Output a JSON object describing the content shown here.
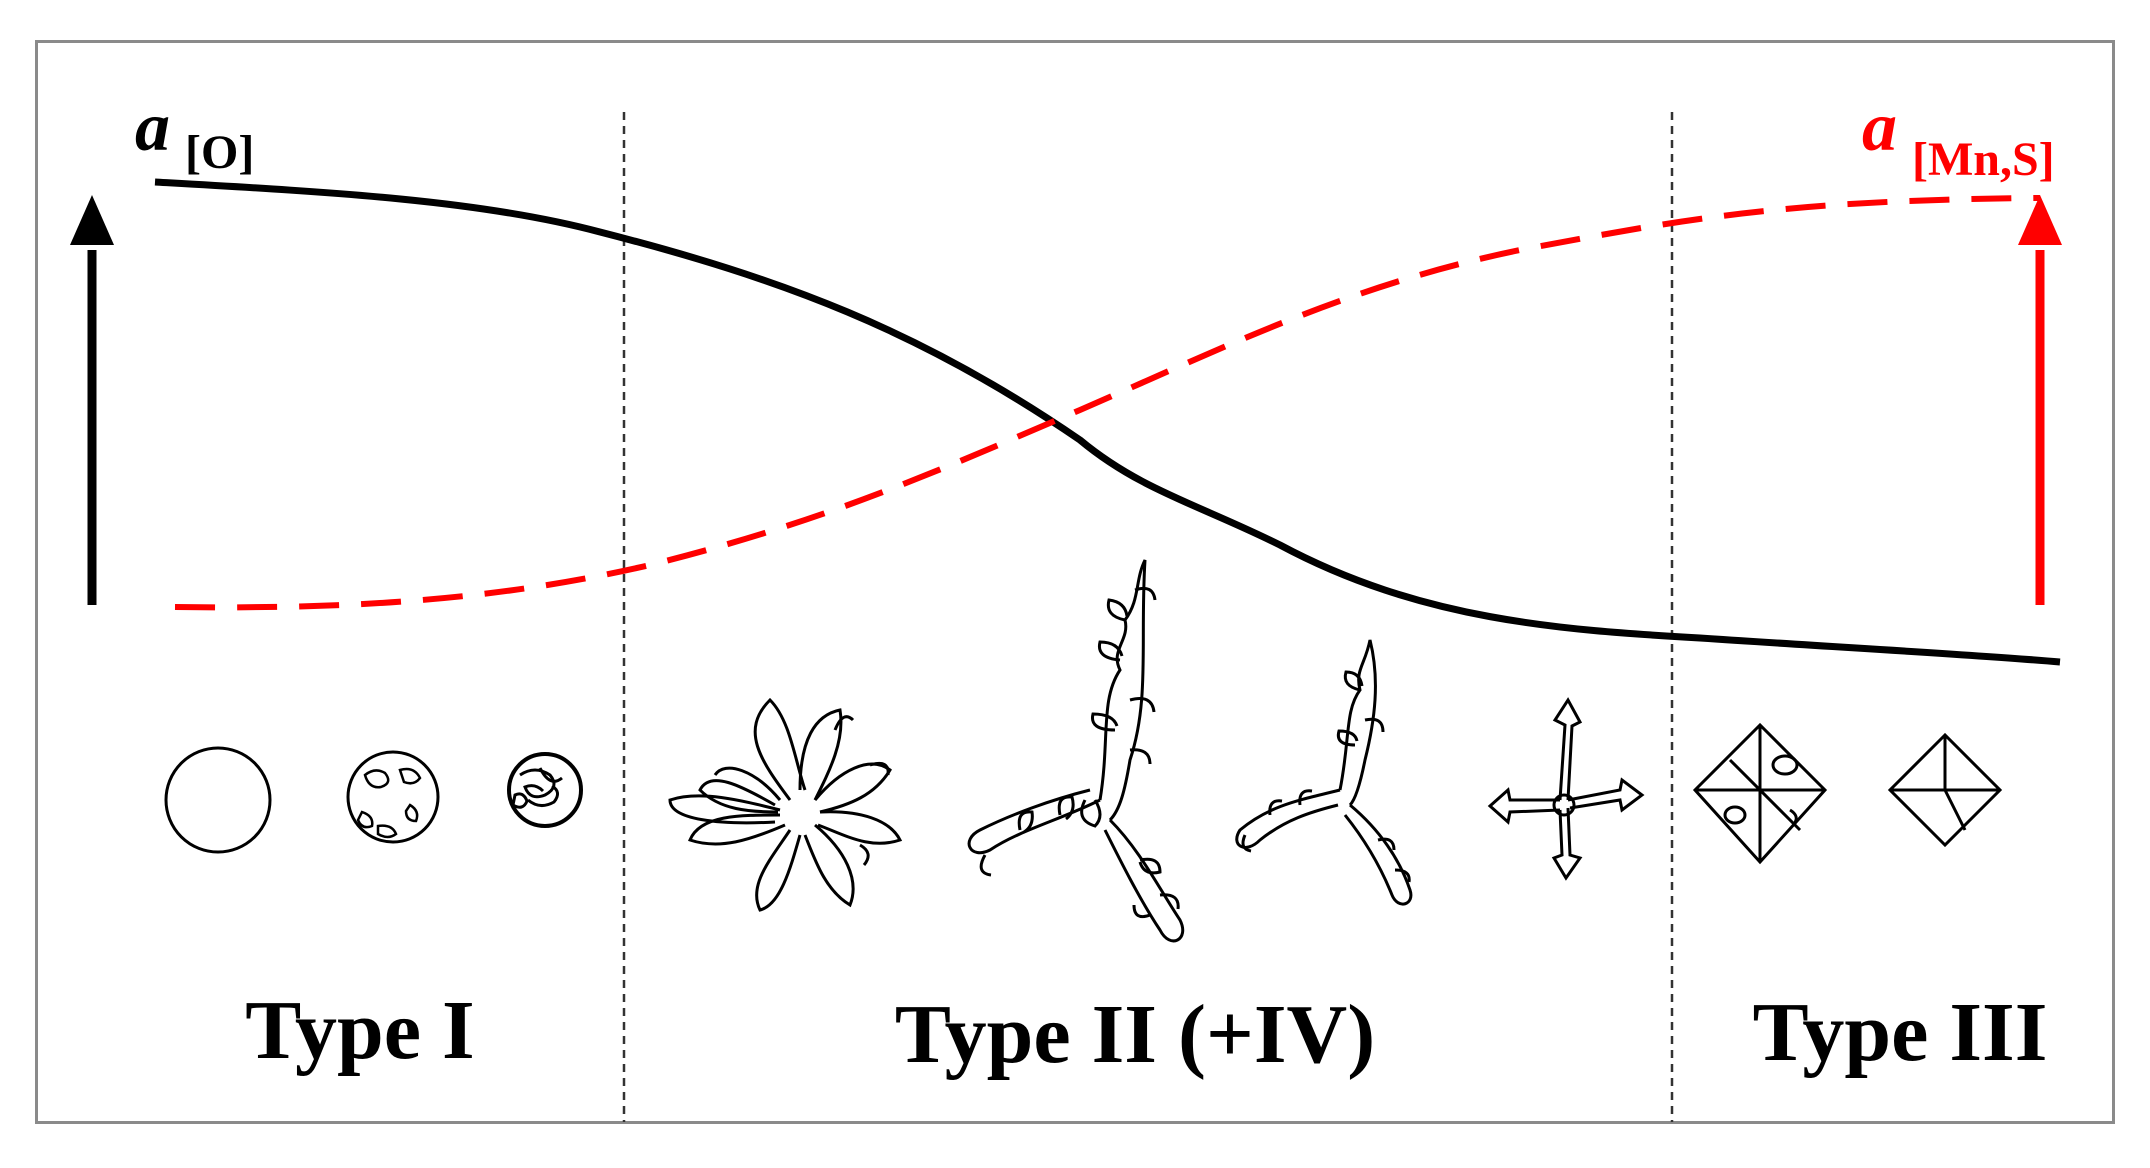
{
  "activity_oxygen": {
    "symbol": "a",
    "subscript": "[O]",
    "color": "#000000"
  },
  "activity_mns": {
    "symbol": "a",
    "subscript": "[Mn,S]",
    "color": "#ff0000"
  },
  "regions": [
    {
      "label": "Type I"
    },
    {
      "label": "Type II (+IV)"
    },
    {
      "label": "Type III"
    }
  ],
  "inclusions": [
    "circle",
    "globular-spotted",
    "globular-dense",
    "fan-dendrite",
    "branched-dendrite-large",
    "branched-dendrite-medium",
    "cross-dendrite",
    "octahedron-spotted",
    "octahedron"
  ]
}
